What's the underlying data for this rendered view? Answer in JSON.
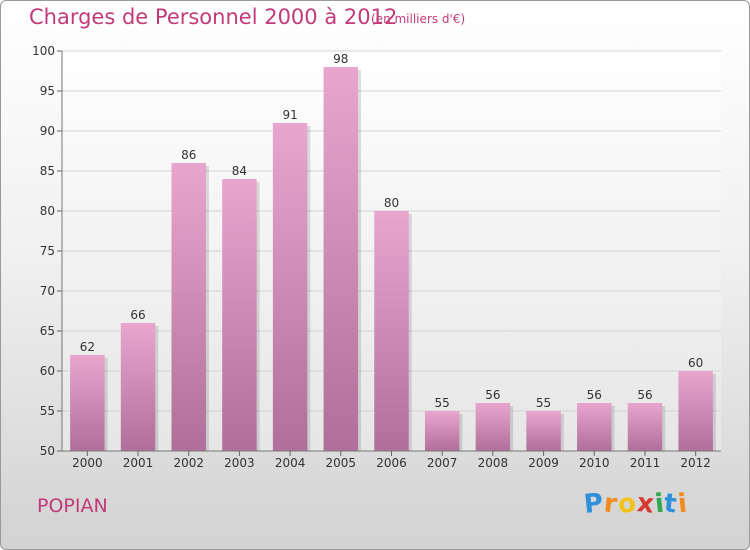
{
  "title": "Charges de Personnel 2000 à 2012",
  "subtitle": "(en milliers d'€)",
  "commune": "POPIAN",
  "logo": {
    "letters": [
      "P",
      "r",
      "o",
      "x",
      "i",
      "t",
      "i"
    ],
    "colors": [
      "#2f8fd8",
      "#f08a1a",
      "#f2c21b",
      "#d8382f",
      "#2fa84f",
      "#2f8fd8",
      "#f08a1a"
    ]
  },
  "colors": {
    "bar_top": "#e8a6cf",
    "bar_bottom": "#b06f9a",
    "text_accent": "#c23a7a"
  },
  "chart_data": {
    "type": "bar",
    "title": "Charges de Personnel 2000 à 2012",
    "subtitle": "(en milliers d'€)",
    "categories": [
      "2000",
      "2001",
      "2002",
      "2003",
      "2004",
      "2005",
      "2006",
      "2007",
      "2008",
      "2009",
      "2010",
      "2011",
      "2012"
    ],
    "values": [
      62,
      66,
      86,
      84,
      91,
      98,
      80,
      55,
      56,
      55,
      56,
      56,
      60
    ],
    "ylim": [
      50,
      100
    ],
    "yticks": [
      50,
      55,
      60,
      65,
      70,
      75,
      80,
      85,
      90,
      95,
      100
    ],
    "grid": true
  }
}
